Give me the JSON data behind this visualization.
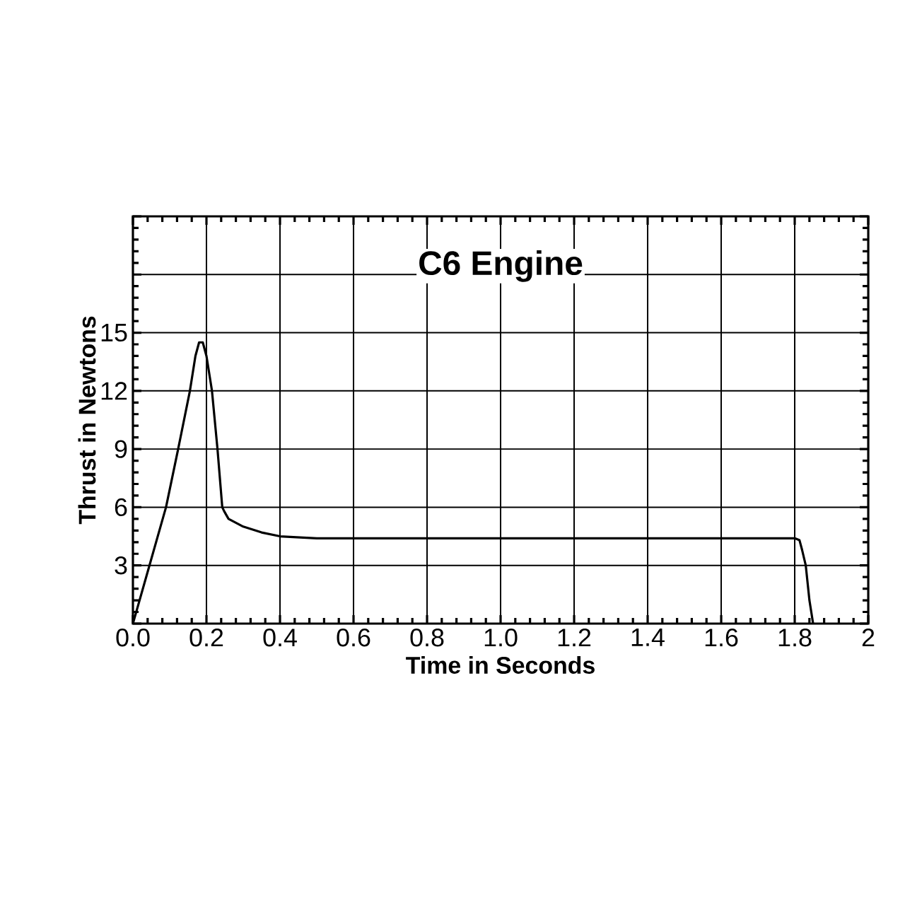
{
  "chart_data": {
    "type": "line",
    "title": "C6 Engine",
    "xlabel": "Time in Seconds",
    "ylabel": "Thrust in Newtons",
    "x": [
      0,
      0.045,
      0.09,
      0.123,
      0.155,
      0.17,
      0.18,
      0.19,
      0.2,
      0.215,
      0.23,
      0.243,
      0.248,
      0.26,
      0.3,
      0.35,
      0.4,
      0.5,
      0.7,
      1.0,
      1.4,
      1.8,
      1.813,
      1.82,
      1.83,
      1.84,
      1.85
    ],
    "series": [
      {
        "color": "#000000",
        "values": [
          0,
          3,
          6,
          9,
          12,
          13.8,
          14.5,
          14.5,
          13.8,
          12,
          9,
          6,
          5.8,
          5.4,
          5.0,
          4.7,
          4.5,
          4.4,
          4.4,
          4.4,
          4.4,
          4.4,
          4.3,
          3.8,
          3,
          1.2,
          0
        ]
      }
    ],
    "xlim": [
      0,
      2
    ],
    "ylim": [
      0,
      21
    ],
    "xticks": [
      {
        "value": 0,
        "label": "0.0"
      },
      0.2,
      0.4,
      0.6,
      0.8,
      {
        "value": 1,
        "label": "1.0"
      },
      1.2,
      1.4,
      1.6,
      1.8,
      2
    ],
    "yticks": [
      {
        "value": 0,
        "label": null
      },
      3,
      6,
      9,
      12,
      15,
      {
        "value": 18,
        "label": null
      },
      {
        "value": 21,
        "label": null
      }
    ],
    "grid": true,
    "marker": "none",
    "line_style": "solid"
  }
}
